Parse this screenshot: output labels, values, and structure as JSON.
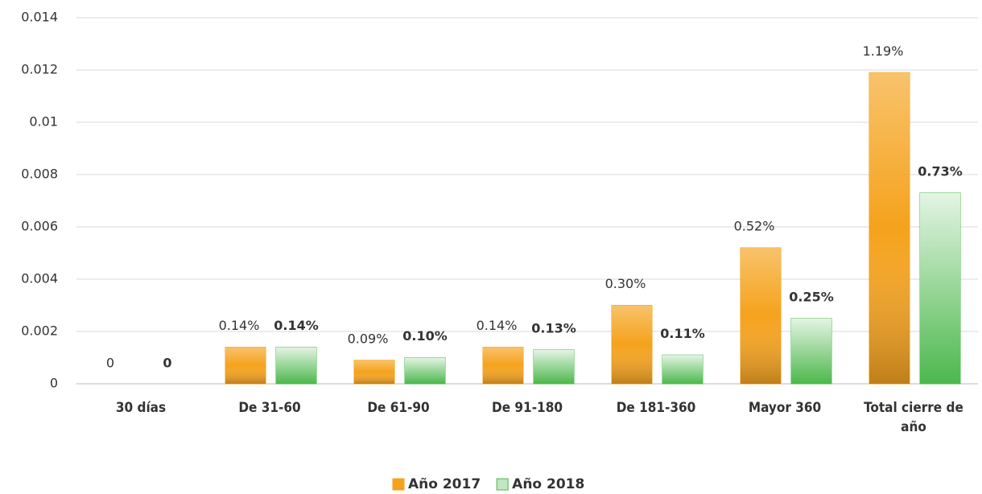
{
  "chart_data": {
    "type": "bar",
    "categories": [
      "30 días",
      "De 31-60",
      "De 61-90",
      "De 91-180",
      "De 181-360",
      "Mayor 360",
      "Total cierre de año"
    ],
    "series": [
      {
        "name": "Año 2017",
        "color": "#f5a21c",
        "values": [
          0,
          0.0014,
          0.0009,
          0.0014,
          0.003,
          0.0052,
          0.0119
        ],
        "value_labels": [
          "0",
          "0.14%",
          "0.09%",
          "0.14%",
          "0.30%",
          "0.52%",
          "1.19%"
        ]
      },
      {
        "name": "Año 2018",
        "color": "#4cb84c",
        "values": [
          0,
          0.0014,
          0.001,
          0.0013,
          0.0011,
          0.0025,
          0.0073
        ],
        "value_labels": [
          "0",
          "0.14%",
          "0.10%",
          "0.13%",
          "0.11%",
          "0.25%",
          "0.73%"
        ]
      }
    ],
    "ylim": [
      0,
      0.014
    ],
    "yticks": [
      0,
      0.002,
      0.004,
      0.006,
      0.008,
      0.01,
      0.012,
      0.014
    ],
    "grid": true,
    "legend": "bottom"
  }
}
